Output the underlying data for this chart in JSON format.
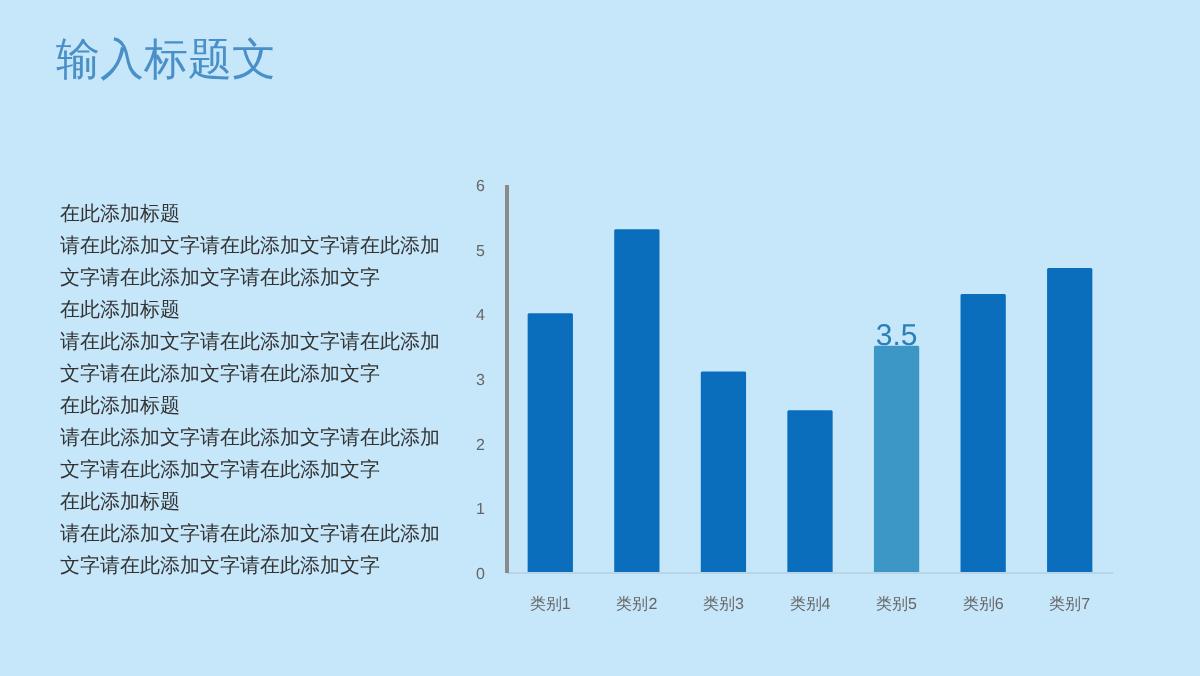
{
  "chart_data": {
    "type": "bar",
    "title": "输入标题文",
    "categories": [
      "类别1",
      "类别2",
      "类别3",
      "类别4",
      "类别5",
      "类别6",
      "类别7"
    ],
    "values": [
      4,
      5.3,
      3.1,
      2.5,
      3.5,
      4.3,
      4.7
    ],
    "colors": [
      "#0a6ebd",
      "#0a6ebd",
      "#0a6ebd",
      "#0a6ebd",
      "#3d97c6",
      "#0a6ebd",
      "#0a6ebd"
    ],
    "value_labels": [
      null,
      null,
      null,
      null,
      "3.5",
      null,
      null
    ],
    "ylim": [
      0,
      6
    ],
    "yticks": [
      0,
      1,
      2,
      3,
      4,
      5,
      6
    ],
    "grid": false,
    "annotations": [
      "在此添加标题",
      "请在此添加文字请在此添加文字请在此添加文字请在此添加文字请在此添加文字",
      "在此添加标题",
      "请在此添加文字请在此添加文字请在此添加文字请在此添加文字请在此添加文字",
      "在此添加标题",
      "请在此添加文字请在此添加文字请在此添加文字请在此添加文字请在此添加文字",
      "在此添加标题",
      "请在此添加文字请在此添加文字请在此添加文字请在此添加文字请在此添加文字"
    ]
  }
}
